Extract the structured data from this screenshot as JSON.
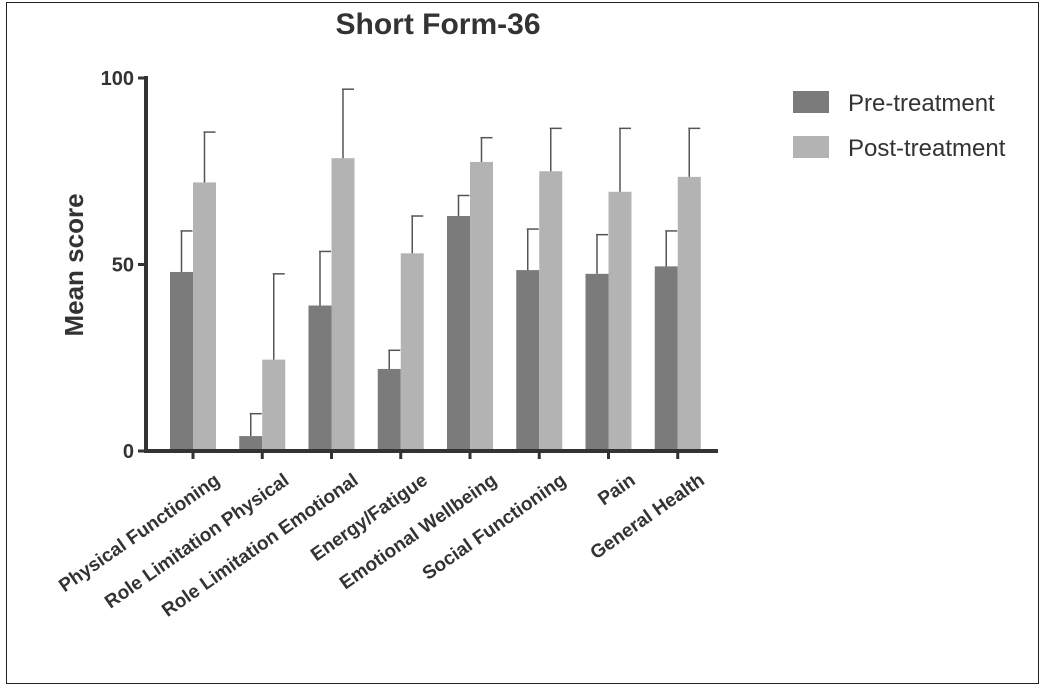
{
  "colors": {
    "pre": "#7b7b7b",
    "post": "#b3b3b3"
  },
  "chart_data": {
    "type": "bar",
    "title": "Short Form-36",
    "xlabel": "",
    "ylabel": "Mean score",
    "ylim": [
      0,
      100
    ],
    "yticks": [
      0,
      50,
      100
    ],
    "legend_position": "top-right",
    "categories": [
      "Physical Functioning",
      "Role Limitation Physical",
      "Role Limitation Emotional",
      "Energy/Fatigue",
      "Emotional Wellbeing",
      "Social Functioning",
      "Pain",
      "General Health"
    ],
    "series": [
      {
        "name": "Pre-treatment",
        "values": [
          48,
          4,
          39,
          22,
          63,
          48.5,
          47.5,
          49.5
        ],
        "error": [
          11,
          6,
          14.5,
          5,
          5.5,
          11,
          10.5,
          9.5
        ]
      },
      {
        "name": "Post-treatment",
        "values": [
          72,
          24.5,
          78.5,
          53,
          77.5,
          75,
          69.5,
          73.5
        ],
        "error": [
          13.5,
          23,
          18.5,
          10,
          6.5,
          11.5,
          17,
          13
        ]
      }
    ]
  }
}
